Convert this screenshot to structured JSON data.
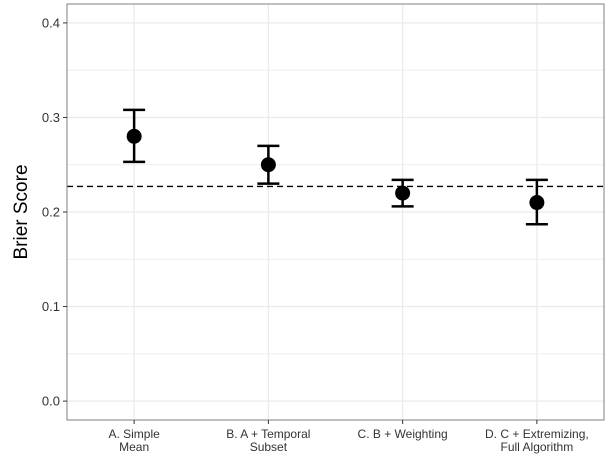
{
  "chart_data": {
    "type": "scatter",
    "title": "",
    "xlabel": "",
    "ylabel": "Brier Score",
    "ylim": [
      -0.02,
      0.42
    ],
    "yticks": [
      0.0,
      0.1,
      0.2,
      0.3,
      0.4
    ],
    "ytick_labels": [
      "0.0",
      "0.1",
      "0.2",
      "0.3",
      "0.4"
    ],
    "grid": true,
    "categories": [
      [
        "A. Simple",
        "Mean"
      ],
      [
        "B. A + Temporal",
        "Subset"
      ],
      [
        "C. B + Weighting"
      ],
      [
        "D. C + Extremizing,",
        "Full Algorithm"
      ]
    ],
    "values": [
      0.28,
      0.25,
      0.22,
      0.21
    ],
    "error_low": [
      0.253,
      0.23,
      0.206,
      0.187
    ],
    "error_high": [
      0.308,
      0.27,
      0.234,
      0.234
    ],
    "reference_line": {
      "y": 0.227,
      "style": "dashed"
    },
    "colors": {
      "points": "#000000",
      "grid": "#ebebeb",
      "panel_border": "#7f7f7f"
    }
  }
}
